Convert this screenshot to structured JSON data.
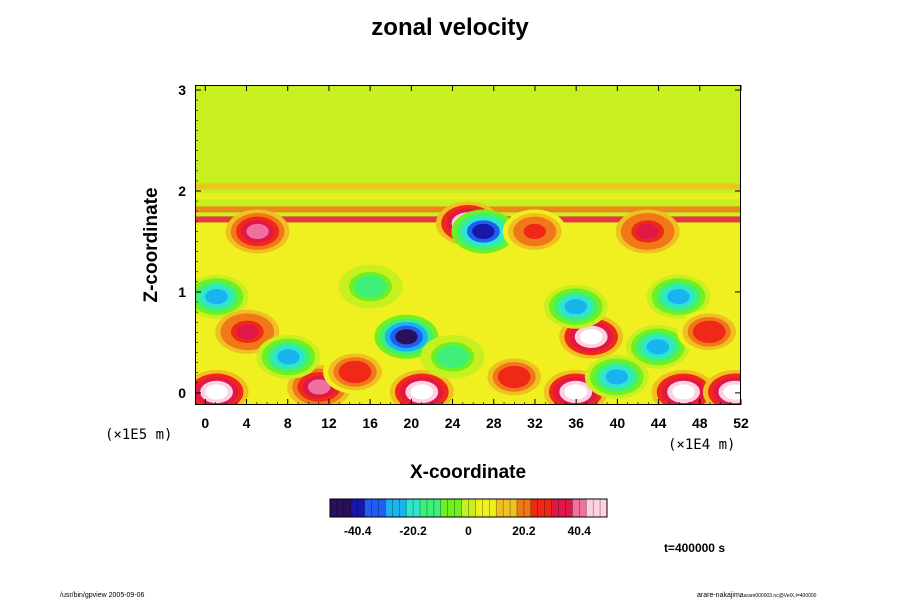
{
  "chart_data": {
    "type": "heatmap",
    "title": "zonal velocity",
    "xlabel": "X-coordinate",
    "ylabel": "Z-coordinate",
    "x_scale_label": "(×1E4 m)",
    "y_scale_label": "(×1E5 m)",
    "x_ticks": [
      "0",
      "4",
      "8",
      "12",
      "16",
      "20",
      "24",
      "28",
      "32",
      "36",
      "40",
      "44",
      "48",
      "52"
    ],
    "y_ticks": [
      "0",
      "1",
      "2",
      "3"
    ],
    "xlim": [
      -1,
      52
    ],
    "ylim": [
      -0.12,
      3.05
    ],
    "colorbar": {
      "ticks": [
        "-40.4",
        "-20.2",
        "0",
        "20.2",
        "40.4"
      ],
      "range": [
        -50.5,
        50.5
      ],
      "colors": [
        "#2a0f5a",
        "#1818a8",
        "#1f5ef0",
        "#19b3f0",
        "#2ee6d0",
        "#3ef07a",
        "#6ff020",
        "#c8f020",
        "#f0f020",
        "#f0c020",
        "#f07818",
        "#f02818",
        "#e01848",
        "#f070a0",
        "#ffd0e0"
      ]
    },
    "time_label": "t=400000 s",
    "features": [
      {
        "x": 1,
        "z": 0.0,
        "value": 55
      },
      {
        "x": 21,
        "z": 0.0,
        "value": 55
      },
      {
        "x": 36,
        "z": 0.0,
        "value": 55
      },
      {
        "x": 46.5,
        "z": 0.0,
        "value": 55
      },
      {
        "x": 51.5,
        "z": 0.0,
        "value": 55
      },
      {
        "x": 25.5,
        "z": 1.68,
        "value": 55
      },
      {
        "x": 37.5,
        "z": 0.55,
        "value": 55
      },
      {
        "x": 19.5,
        "z": 0.55,
        "value": -45
      },
      {
        "x": 27,
        "z": 1.6,
        "value": -40
      },
      {
        "x": 36,
        "z": 0.85,
        "value": -30
      },
      {
        "x": 46,
        "z": 0.95,
        "value": -28
      },
      {
        "x": 1,
        "z": 0.95,
        "value": -25
      },
      {
        "x": 4,
        "z": 0.6,
        "value": 35
      },
      {
        "x": 11,
        "z": 0.05,
        "value": 38
      },
      {
        "x": 14.5,
        "z": 0.2,
        "value": 30
      },
      {
        "x": 30,
        "z": 0.15,
        "value": 30
      },
      {
        "x": 40,
        "z": 0.15,
        "value": -30
      },
      {
        "x": 5,
        "z": 1.6,
        "value": 40
      },
      {
        "x": 43,
        "z": 1.6,
        "value": 35
      },
      {
        "x": 32,
        "z": 1.6,
        "value": 25
      },
      {
        "x": 8,
        "z": 0.35,
        "value": -30
      },
      {
        "x": 44,
        "z": 0.45,
        "value": -25
      },
      {
        "x": 49,
        "z": 0.6,
        "value": 30
      },
      {
        "x": 24,
        "z": 0.35,
        "value": -15
      },
      {
        "x": 16,
        "z": 1.05,
        "value": -15
      }
    ],
    "bands": [
      {
        "z": 2.05,
        "value": 15
      },
      {
        "z": 1.95,
        "value": 10
      },
      {
        "z": 1.82,
        "value": 18
      },
      {
        "z": 1.72,
        "value": 35
      }
    ]
  },
  "footer": {
    "left": "/usr/bin/gpview 2005-09-06",
    "right": "arare-nakajima",
    "right_sub": "arare000003.nc@VelX,t=400000"
  }
}
